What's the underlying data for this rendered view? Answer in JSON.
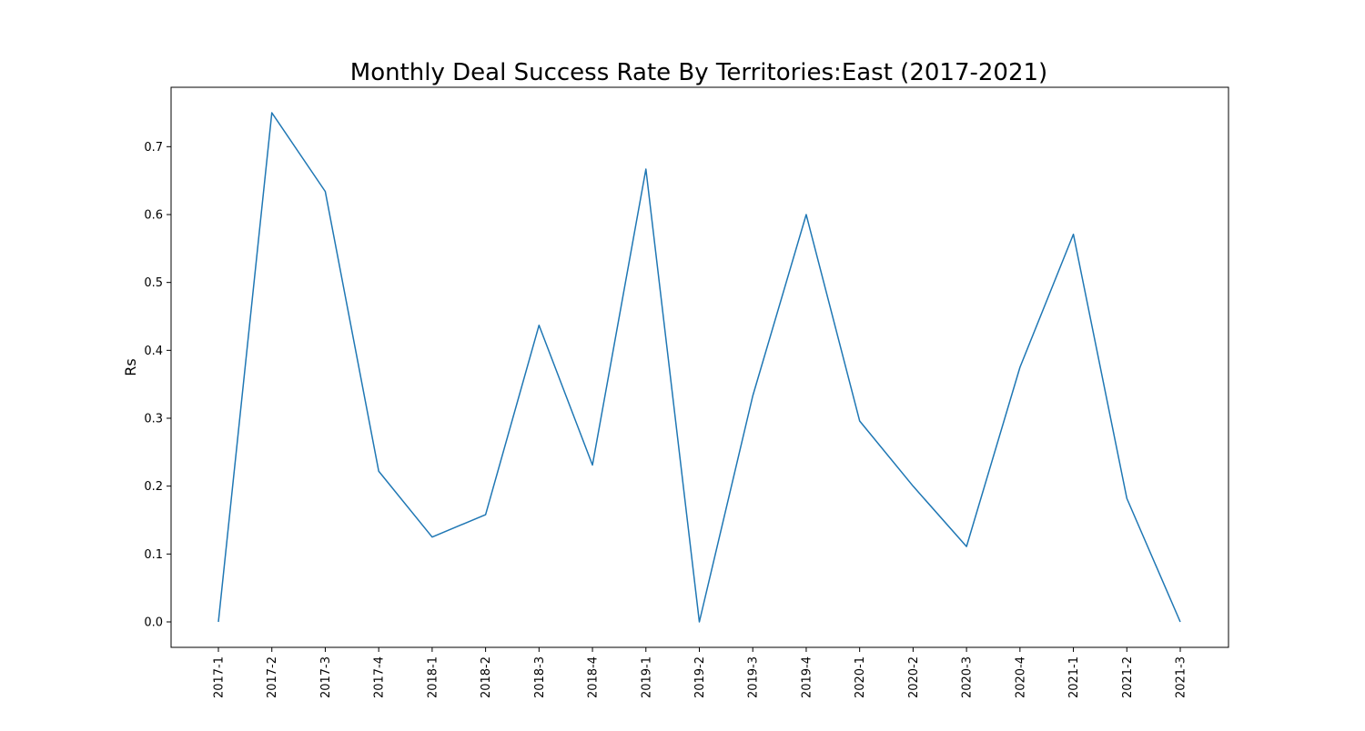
{
  "chart_data": {
    "type": "line",
    "title": "Monthly Deal Success Rate By Territories:East (2017-2021)",
    "xlabel": "",
    "ylabel": "Rs",
    "categories": [
      "2017-1",
      "2017-2",
      "2017-3",
      "2017-4",
      "2018-1",
      "2018-2",
      "2018-3",
      "2018-4",
      "2019-1",
      "2019-2",
      "2019-3",
      "2019-4",
      "2020-1",
      "2020-2",
      "2020-3",
      "2020-4",
      "2021-1",
      "2021-2",
      "2021-3"
    ],
    "series": [
      {
        "values": [
          0.0,
          0.75,
          0.634,
          0.222,
          0.125,
          0.158,
          0.437,
          0.231,
          0.667,
          0.0,
          0.333,
          0.6,
          0.296,
          0.2,
          0.111,
          0.375,
          0.571,
          0.182,
          0.0
        ],
        "color": "#1f77b4"
      }
    ],
    "ylim": [
      -0.0375,
      0.7875
    ],
    "yticks": [
      "0.0",
      "0.1",
      "0.2",
      "0.3",
      "0.4",
      "0.5",
      "0.6",
      "0.7"
    ],
    "grid": false,
    "legend": "none"
  }
}
